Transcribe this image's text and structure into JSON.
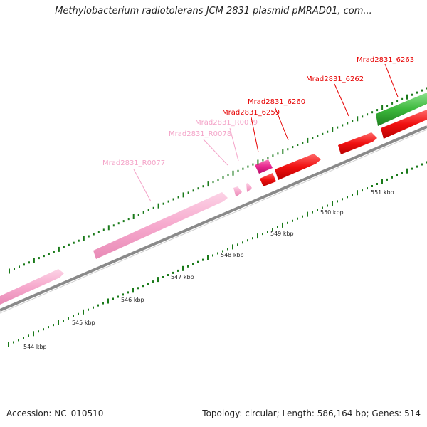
{
  "title": "Methylobacterium radiotolerans JCM 2831 plasmid pMRAD01, com...",
  "footer": {
    "accession": "Accession: NC_010510",
    "summary": "Topology: circular; Length: 586,164 bp; Genes: 514"
  },
  "scale_labels": [
    "544 kbp",
    "545 kbp",
    "546 kbp",
    "547 kbp",
    "548 kbp",
    "549 kbp",
    "550 kbp",
    "551 kbp"
  ],
  "genes": [
    {
      "name": "Mrad2831_R0077",
      "color": "#f4a3c8"
    },
    {
      "name": "Mrad2831_R0078",
      "color": "#f4a3c8"
    },
    {
      "name": "Mrad2831_R0079",
      "color": "#f4a3c8"
    },
    {
      "name": "Mrad2831_6259",
      "color": "#e60000"
    },
    {
      "name": "Mrad2831_6260",
      "color": "#e60000"
    },
    {
      "name": "Mrad2831_6262",
      "color": "#e60000"
    },
    {
      "name": "Mrad2831_6263",
      "color": "#e60000"
    }
  ],
  "colors": {
    "pink_feature": "#f6a9cd",
    "magenta_feature": "#e8288f",
    "red_feature": "#f01010",
    "green_feature": "#3cb83c",
    "backbone": "#8a8a8a",
    "tick": "#1a7a1a"
  }
}
